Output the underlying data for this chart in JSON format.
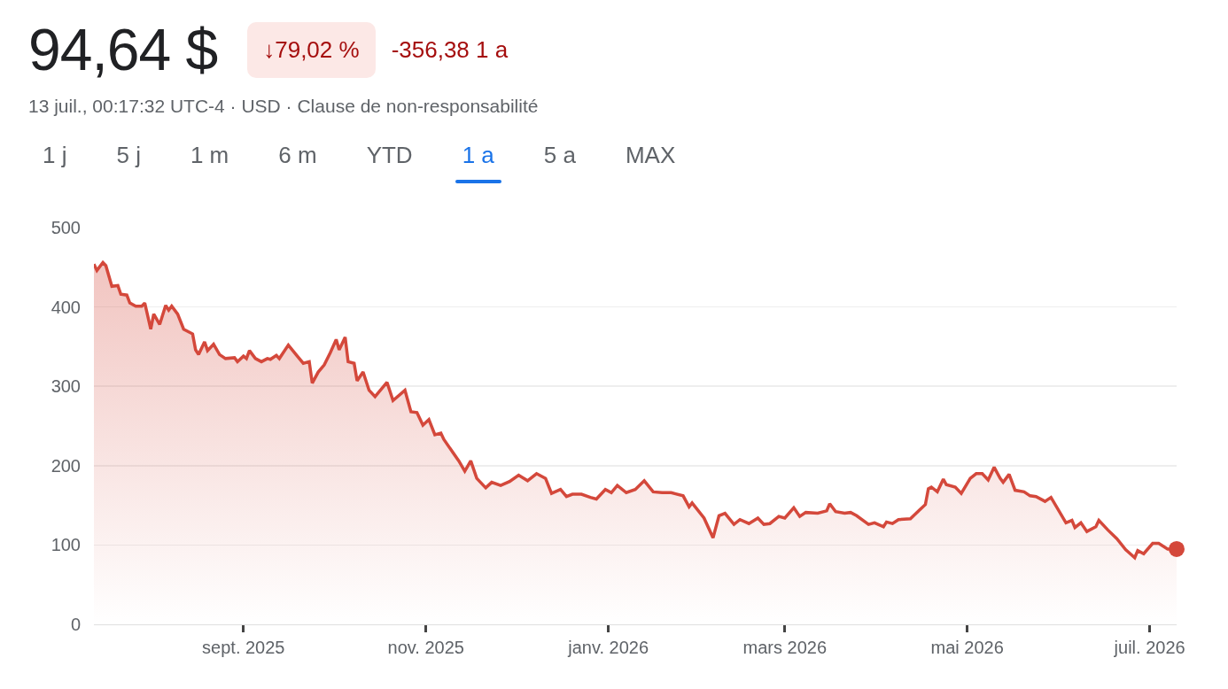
{
  "chart_data": {
    "type": "area",
    "title": "94,64 $",
    "subtitle": "13 juil., 00:17:32 UTC-4 · USD · Clause de non-responsabilité",
    "annotations": [
      "↓79,02 %",
      "-356,38 1 a",
      "1 j",
      "5 j",
      "1 m",
      "6 m",
      "YTD",
      "1 a",
      "5 a",
      "MAX"
    ],
    "x": [
      "2025-07-13",
      "2025-07-14",
      "2025-07-16",
      "2025-07-17",
      "2025-07-19",
      "2025-07-21",
      "2025-07-22",
      "2025-07-24",
      "2025-07-25",
      "2025-07-27",
      "2025-07-29",
      "2025-07-30",
      "2025-08-01",
      "2025-08-02",
      "2025-08-04",
      "2025-08-06",
      "2025-08-07",
      "2025-08-08",
      "2025-08-10",
      "2025-08-12",
      "2025-08-15",
      "2025-08-16",
      "2025-08-17",
      "2025-08-19",
      "2025-08-20",
      "2025-08-22",
      "2025-08-24",
      "2025-08-26",
      "2025-08-29",
      "2025-08-30",
      "2025-09-01",
      "2025-09-02",
      "2025-09-03",
      "2025-09-05",
      "2025-09-07",
      "2025-09-09",
      "2025-09-10",
      "2025-09-12",
      "2025-09-13",
      "2025-09-16",
      "2025-09-19",
      "2025-09-21",
      "2025-09-23",
      "2025-09-24",
      "2025-09-26",
      "2025-09-28",
      "2025-09-30",
      "2025-10-02",
      "2025-10-03",
      "2025-10-05",
      "2025-10-06",
      "2025-10-08",
      "2025-10-09",
      "2025-10-11",
      "2025-10-13",
      "2025-10-15",
      "2025-10-19",
      "2025-10-21",
      "2025-10-25",
      "2025-10-27",
      "2025-10-29",
      "2025-10-31",
      "2025-11-02",
      "2025-11-04",
      "2025-11-06",
      "2025-11-07",
      "2025-11-12",
      "2025-11-14",
      "2025-11-16",
      "2025-11-18",
      "2025-11-21",
      "2025-11-23",
      "2025-11-26",
      "2025-11-29",
      "2025-12-02",
      "2025-12-05",
      "2025-12-08",
      "2025-12-11",
      "2025-12-13",
      "2025-12-16",
      "2025-12-18",
      "2025-12-20",
      "2025-12-23",
      "2025-12-26",
      "2025-12-28",
      "2025-12-31",
      "2026-01-02",
      "2026-01-04",
      "2026-01-07",
      "2026-01-10",
      "2026-01-13",
      "2026-01-16",
      "2026-01-19",
      "2026-01-22",
      "2026-01-26",
      "2026-01-28",
      "2026-01-29",
      "2026-02-02",
      "2026-02-05",
      "2026-02-07",
      "2026-02-09",
      "2026-02-12",
      "2026-02-14",
      "2026-02-17",
      "2026-02-20",
      "2026-02-22",
      "2026-02-24",
      "2026-02-27",
      "2026-03-01",
      "2026-03-04",
      "2026-03-06",
      "2026-03-08",
      "2026-03-12",
      "2026-03-15",
      "2026-03-16",
      "2026-03-18",
      "2026-03-21",
      "2026-03-23",
      "2026-03-25",
      "2026-03-29",
      "2026-03-31",
      "2026-04-03",
      "2026-04-04",
      "2026-04-06",
      "2026-04-08",
      "2026-04-12",
      "2026-04-15",
      "2026-04-17",
      "2026-04-18",
      "2026-04-19",
      "2026-04-21",
      "2026-04-23",
      "2026-04-24",
      "2026-04-27",
      "2026-04-29",
      "2026-05-02",
      "2026-05-04",
      "2026-05-06",
      "2026-05-08",
      "2026-05-10",
      "2026-05-12",
      "2026-05-13",
      "2026-05-15",
      "2026-05-17",
      "2026-05-20",
      "2026-05-22",
      "2026-05-24",
      "2026-05-27",
      "2026-05-29",
      "2026-06-03",
      "2026-06-05",
      "2026-06-06",
      "2026-06-08",
      "2026-06-10",
      "2026-06-13",
      "2026-06-14",
      "2026-06-17",
      "2026-06-20",
      "2026-06-23",
      "2026-06-26",
      "2026-06-27",
      "2026-06-29",
      "2026-07-02",
      "2026-07-04",
      "2026-07-07",
      "2026-07-10"
    ],
    "series": [
      {
        "color": "#d4483b",
        "values": [
          454,
          446,
          456,
          452,
          426,
          427,
          416,
          415,
          405,
          401,
          401,
          405,
          372,
          391,
          378,
          402,
          396,
          401,
          391,
          372,
          366,
          346,
          340,
          356,
          345,
          353,
          340,
          335,
          336,
          331,
          338,
          335,
          345,
          335,
          331,
          335,
          334,
          339,
          335,
          352,
          338,
          329,
          331,
          304,
          318,
          327,
          342,
          359,
          346,
          362,
          331,
          329,
          307,
          318,
          295,
          287,
          305,
          282,
          295,
          268,
          267,
          251,
          258,
          239,
          241,
          233,
          206,
          193,
          206,
          184,
          172,
          179,
          175,
          180,
          188,
          181,
          190,
          184,
          165,
          170,
          161,
          164,
          164,
          160,
          158,
          170,
          166,
          175,
          166,
          170,
          181,
          167,
          166,
          166,
          162,
          148,
          153,
          134,
          109,
          137,
          140,
          126,
          132,
          127,
          134,
          126,
          127,
          136,
          134,
          147,
          136,
          141,
          140,
          143,
          152,
          142,
          140,
          141,
          137,
          126,
          128,
          123,
          129,
          127,
          132,
          133,
          144,
          151,
          171,
          173,
          167,
          183,
          176,
          173,
          165,
          184,
          190,
          190,
          182,
          198,
          184,
          179,
          189,
          169,
          167,
          162,
          161,
          155,
          160,
          128,
          131,
          122,
          128,
          117,
          123,
          131,
          119,
          108,
          94,
          84,
          93,
          89,
          102,
          102,
          95,
          95
        ]
      },
      {
        "type": "scatter",
        "marker": "circle",
        "color": "#d4483b",
        "x": [
          "2026-07-10"
        ],
        "values": [
          95
        ]
      }
    ],
    "marker": "none",
    "line_style": "solid",
    "xlim": [
      "2025-07-13",
      "2026-07-10"
    ],
    "xticks": [
      {
        "value": "2025-09-01",
        "label": "sept. 2025"
      },
      {
        "value": "2025-11-01",
        "label": "nov. 2025"
      },
      {
        "value": "2026-01-01",
        "label": "janv. 2026"
      },
      {
        "value": "2026-03-01",
        "label": "mars 2026"
      },
      {
        "value": "2026-05-01",
        "label": "mai 2026"
      },
      {
        "value": "2026-07-01",
        "label": "juil. 2026"
      }
    ],
    "ylim": [
      0,
      500
    ],
    "yticks": [
      0,
      100,
      200,
      300,
      400,
      500
    ],
    "grid": "y"
  }
}
